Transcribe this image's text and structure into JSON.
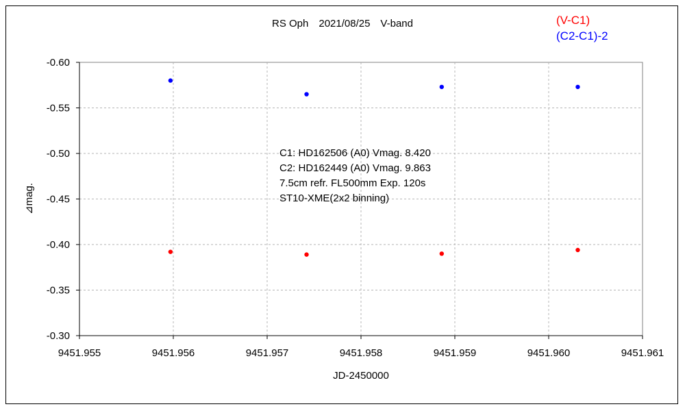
{
  "chart_data": {
    "type": "scatter",
    "title": "RS Oph　2021/08/25　V-band",
    "xlabel": "JD-2450000",
    "ylabel": "⊿mag.",
    "xlim": [
      9451.955,
      9451.961
    ],
    "ylim": [
      -0.6,
      -0.3
    ],
    "y_inverted": true,
    "grid": true,
    "legend_position": "top-right",
    "x_ticks": [
      "9451.955",
      "9451.956",
      "9451.957",
      "9451.958",
      "9451.959",
      "9451.960",
      "9451.961"
    ],
    "x_tick_values": [
      9451.955,
      9451.956,
      9451.957,
      9451.958,
      9451.959,
      9451.96,
      9451.961
    ],
    "y_ticks": [
      "-0.60",
      "-0.55",
      "-0.50",
      "-0.45",
      "-0.40",
      "-0.35",
      "-0.30"
    ],
    "y_tick_values": [
      -0.6,
      -0.55,
      -0.5,
      -0.45,
      -0.4,
      -0.35,
      -0.3
    ],
    "series": [
      {
        "name": "(V-C1)",
        "color": "#ff0000",
        "x": [
          9451.95597,
          9451.95742,
          9451.95886,
          9451.96031
        ],
        "y": [
          -0.392,
          -0.389,
          -0.39,
          -0.394
        ]
      },
      {
        "name": "(C2-C1)-2",
        "color": "#0000ff",
        "x": [
          9451.95597,
          9451.95742,
          9451.95886,
          9451.96031
        ],
        "y": [
          -0.58,
          -0.565,
          -0.573,
          -0.573
        ]
      }
    ],
    "annotations": [
      "C1: HD162506 (A0) Vmag. 8.420",
      "C2: HD162449 (A0) Vmag. 9.863",
      "7.5cm refr. FL500mm Exp. 120s",
      "ST10-XME(2x2 binning)"
    ]
  }
}
